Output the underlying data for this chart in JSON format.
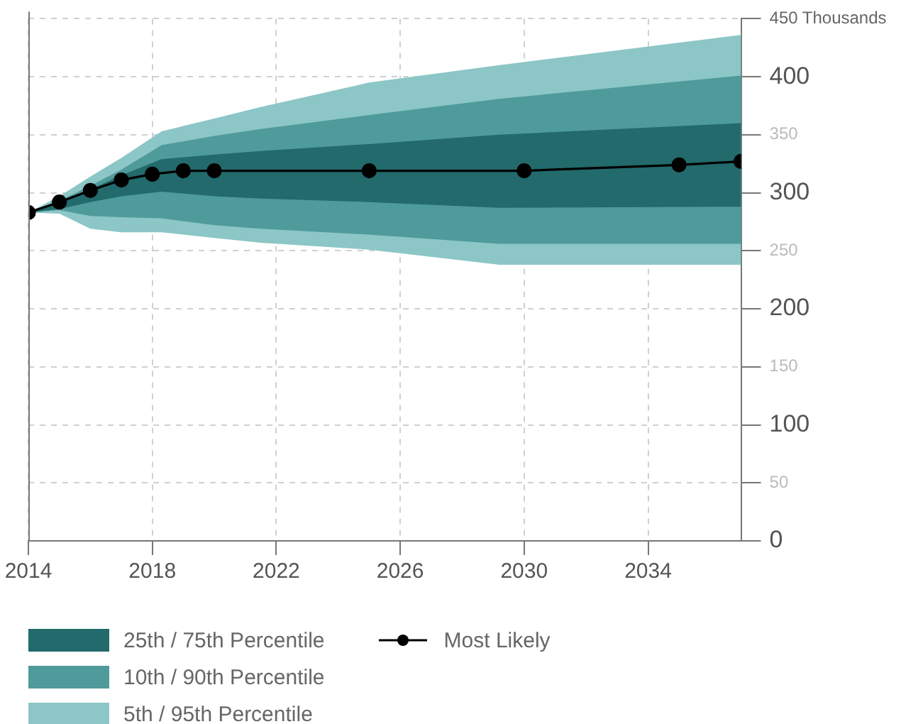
{
  "chart_data": {
    "type": "line",
    "xlim": [
      2014,
      2037
    ],
    "xticks": [
      2014,
      2018,
      2022,
      2026,
      2030,
      2034
    ],
    "ylim": [
      0,
      450
    ],
    "yticks": [
      0,
      50,
      100,
      150,
      200,
      250,
      300,
      350,
      400,
      {
        "value": 450,
        "label": "450 Thousands"
      }
    ],
    "grid": true,
    "legend": "bottom",
    "line_style": "solid",
    "series": [
      {
        "name": "25th / 75th Percentile",
        "type": "area",
        "color": "#226a6c",
        "x": [
          2014,
          2015,
          2016,
          2017,
          2018.3,
          2020,
          2021.5,
          2025,
          2029.2,
          2037
        ],
        "values": [
          null,
          null,
          null,
          null,
          null,
          null,
          null,
          null,
          null,
          null
        ],
        "lower": [
          283,
          286,
          292,
          297,
          301,
          297,
          295,
          292,
          287,
          288
        ],
        "upper": [
          283,
          291,
          303,
          315,
          329,
          333,
          336,
          342,
          350,
          360
        ]
      },
      {
        "name": "10th / 90th Percentile",
        "type": "area",
        "color": "#4f9a9a",
        "x": [
          2014,
          2015,
          2016,
          2017,
          2018.3,
          2020,
          2021.5,
          2025,
          2029.2,
          2037
        ],
        "values": [
          null,
          null,
          null,
          null,
          null,
          null,
          null,
          null,
          null,
          null
        ],
        "lower": [
          283,
          285,
          280,
          279,
          278,
          272,
          269,
          264,
          256,
          256
        ],
        "upper": [
          283,
          293,
          306,
          320,
          341,
          349,
          355,
          367,
          381,
          401
        ]
      },
      {
        "name": "5th / 95th Percentile",
        "type": "area",
        "color": "#8cc6c6",
        "x": [
          2014,
          2015,
          2016,
          2017,
          2018.3,
          2020,
          2021.5,
          2025,
          2029.2,
          2037
        ],
        "values": [
          null,
          null,
          null,
          null,
          null,
          null,
          null,
          null,
          null,
          null
        ],
        "lower": [
          283,
          282,
          269,
          266,
          266,
          261,
          257,
          251,
          238,
          238
        ],
        "upper": [
          283,
          297,
          314,
          330,
          353,
          364,
          374,
          395,
          410,
          436
        ]
      },
      {
        "name": "Most Likely",
        "type": "line",
        "marker": "circle",
        "color": "#000000",
        "x": [
          2014,
          2015,
          2016,
          2017,
          2018,
          2019,
          2020,
          2025,
          2030,
          2035,
          2037
        ],
        "values": [
          283,
          292,
          302,
          311,
          316,
          319,
          319,
          319,
          319,
          324,
          327
        ]
      }
    ]
  }
}
